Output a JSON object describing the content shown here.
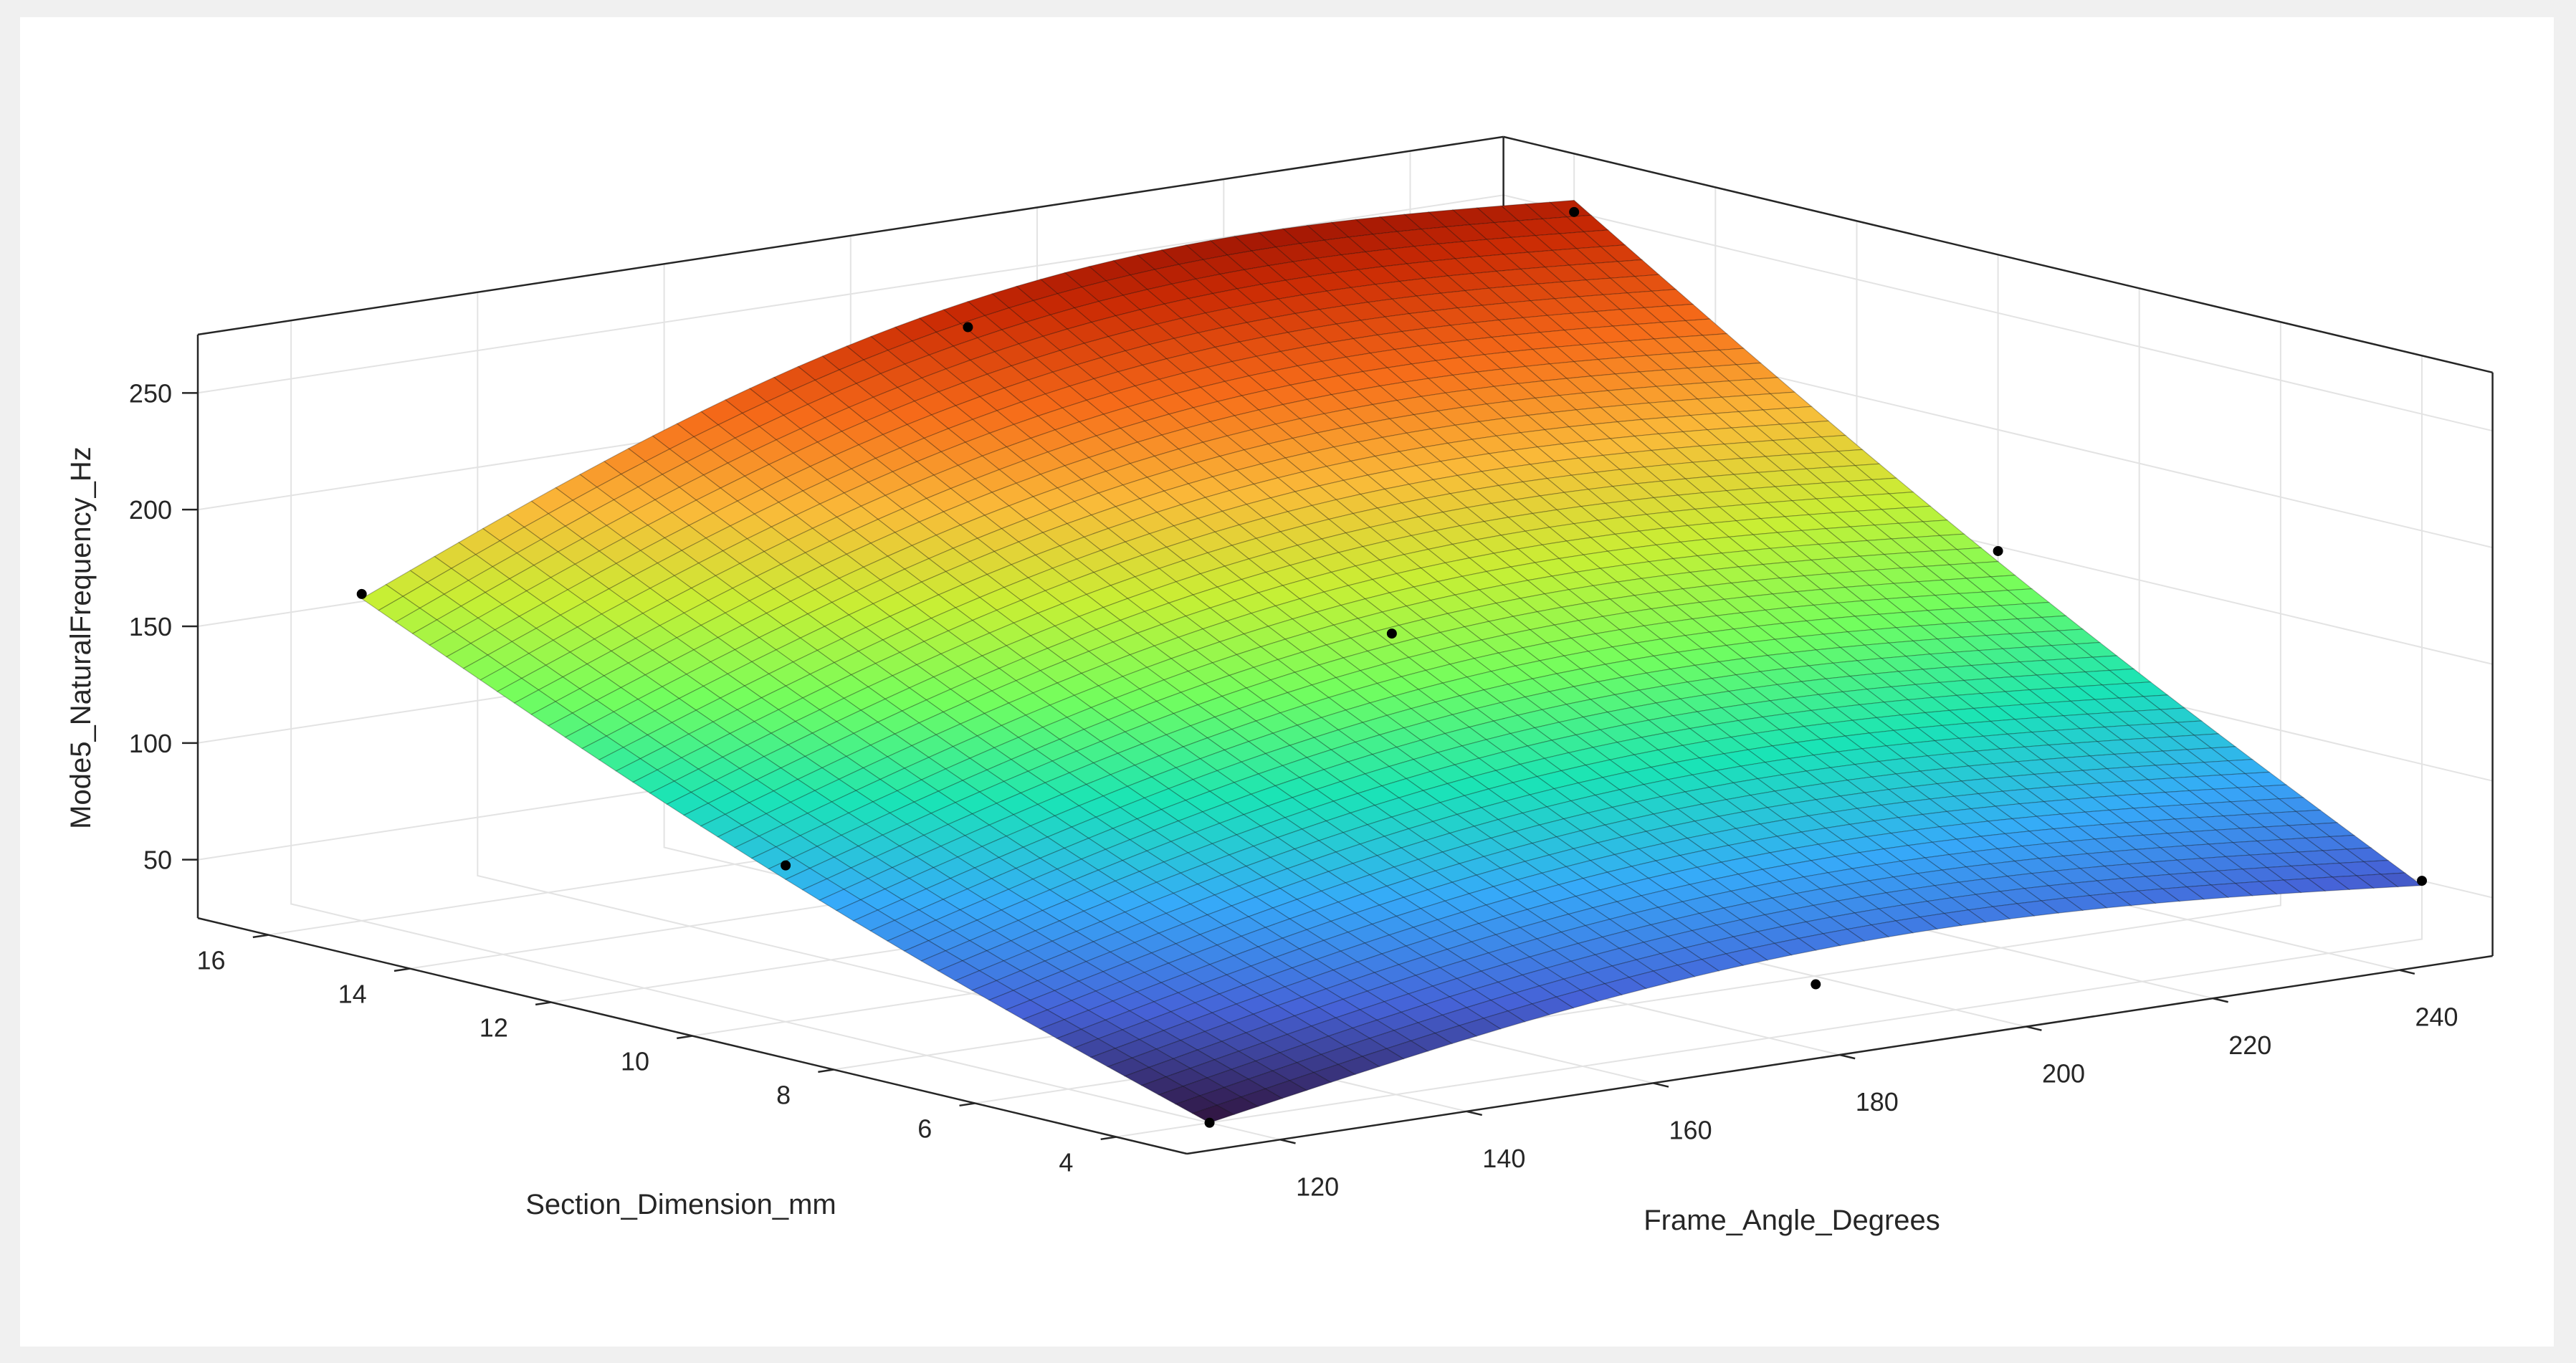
{
  "chart_data": {
    "type": "surface",
    "title": "",
    "x_axis": {
      "label": "Frame_Angle_Degrees",
      "range": [
        110,
        250
      ],
      "ticks": [
        120,
        140,
        160,
        180,
        200,
        220,
        240
      ]
    },
    "y_axis": {
      "label": "Section_Dimension_mm",
      "range": [
        3,
        17
      ],
      "ticks": [
        4,
        6,
        8,
        10,
        12,
        14,
        16
      ]
    },
    "z_axis": {
      "label": "Mode5_NaturalFrequency_Hz",
      "range": [
        25,
        275
      ],
      "ticks": [
        50,
        100,
        150,
        200,
        250
      ]
    },
    "grid": true,
    "colormap": [
      "#30123b",
      "#4662d7",
      "#36aaf9",
      "#1ae4b6",
      "#72fe5e",
      "#c8ef34",
      "#faba39",
      "#f66b19",
      "#ca2a04",
      "#7a0403"
    ],
    "surface": {
      "x_range": [
        120,
        250
      ],
      "y_range": [
        4,
        16
      ],
      "corner_values_hz": {
        "x120_y4": 25,
        "x250_y4": 48,
        "x120_y16": 163,
        "x250_y16": 255
      }
    },
    "points": [
      {
        "x": 120,
        "y": 4,
        "z": 25
      },
      {
        "x": 120,
        "y": 10,
        "z": 92
      },
      {
        "x": 120,
        "y": 16,
        "z": 165
      },
      {
        "x": 185,
        "y": 4,
        "z": 45
      },
      {
        "x": 185,
        "y": 10,
        "z": 152
      },
      {
        "x": 185,
        "y": 16,
        "z": 240
      },
      {
        "x": 250,
        "y": 4,
        "z": 50
      },
      {
        "x": 250,
        "y": 10,
        "z": 148
      },
      {
        "x": 250,
        "y": 16,
        "z": 250
      }
    ]
  }
}
